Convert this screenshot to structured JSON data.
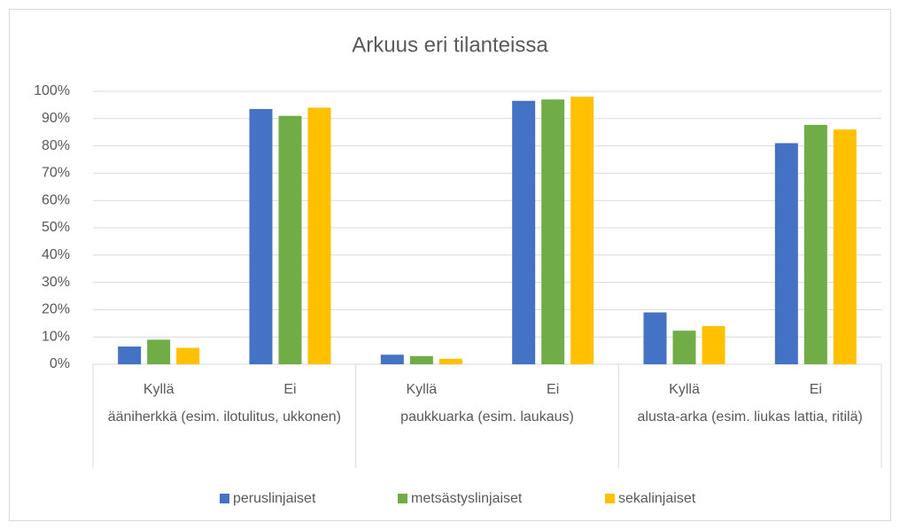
{
  "chart_data": {
    "type": "bar",
    "title": "Arkuus eri tilanteissa",
    "categories": [
      "Kyllä",
      "Ei",
      "Kyllä",
      "Ei",
      "Kyllä",
      "Ei"
    ],
    "groups": [
      "ääniherkkä (esim. ilotulitus, ukkonen)",
      "paukkuarka (esim. laukaus)",
      "alusta-arka (esim. liukas lattia, ritilä)"
    ],
    "series": [
      {
        "name": "peruslinjaiset",
        "color": "#4472c4",
        "values": [
          6.5,
          93.5,
          3.5,
          96.5,
          19,
          81
        ]
      },
      {
        "name": "metsästyslinjaiset",
        "color": "#70ad47",
        "values": [
          9,
          91,
          3,
          97,
          12.3,
          87.7
        ]
      },
      {
        "name": "sekalinjaiset",
        "color": "#ffc000",
        "values": [
          6,
          94,
          2,
          98,
          14,
          86
        ]
      }
    ],
    "ylim": [
      0,
      100
    ],
    "yticks": [
      {
        "value": 0,
        "label": "0%"
      },
      {
        "value": 10,
        "label": "10%"
      },
      {
        "value": 20,
        "label": "20%"
      },
      {
        "value": 30,
        "label": "30%"
      },
      {
        "value": 40,
        "label": "40%"
      },
      {
        "value": 50,
        "label": "50%"
      },
      {
        "value": 60,
        "label": "60%"
      },
      {
        "value": 70,
        "label": "70%"
      },
      {
        "value": 80,
        "label": "80%"
      },
      {
        "value": 90,
        "label": "90%"
      },
      {
        "value": 100,
        "label": "100%"
      }
    ],
    "grid": true,
    "legend": "bottom"
  }
}
